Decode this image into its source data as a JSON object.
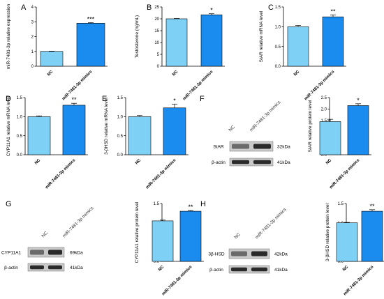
{
  "colors": {
    "nc_bar": "#7fd0f5",
    "mimics_bar": "#1a8cf0",
    "axis": "#000000",
    "blot_dark": "#2a2a2a",
    "blot_bg": "#c9c9c9"
  },
  "chart_data": [
    {
      "id": "A",
      "panel_label": "A",
      "type": "bar",
      "categories": [
        "NC",
        "miR-7481-3p mimics"
      ],
      "values": [
        1.0,
        2.9
      ],
      "errors": [
        0.02,
        0.04
      ],
      "significance": "***",
      "ylabel": "miR-7481-3p relative expression",
      "ylim": [
        0,
        4
      ],
      "yticks": [
        "0",
        "1",
        "2",
        "3",
        "4"
      ]
    },
    {
      "id": "B",
      "panel_label": "B",
      "type": "bar",
      "categories": [
        "NC",
        "miR-7481-3p mimics"
      ],
      "values": [
        20.0,
        21.7
      ],
      "errors": [
        0.15,
        0.45
      ],
      "significance": "*",
      "ylabel": "Testosterone (ng/mL)",
      "ylim": [
        0,
        25
      ],
      "yticks": [
        "0",
        "5",
        "10",
        "15",
        "20",
        "25"
      ]
    },
    {
      "id": "C",
      "panel_label": "C",
      "type": "bar",
      "categories": [
        "NC",
        "miR-7481-3p mimics"
      ],
      "values": [
        1.0,
        1.25
      ],
      "errors": [
        0.03,
        0.05
      ],
      "significance": "**",
      "ylabel": "StAR relative mRNA level",
      "ylim": [
        0,
        1.5
      ],
      "yticks": [
        "0.0",
        "0.5",
        "1.0",
        "1.5"
      ]
    },
    {
      "id": "D",
      "panel_label": "D",
      "type": "bar",
      "categories": [
        "NC",
        "miR-7481-3p mimics"
      ],
      "values": [
        1.0,
        1.3
      ],
      "errors": [
        0.02,
        0.05
      ],
      "significance": "**",
      "ylabel": "CYP11A1 relative mRNA level",
      "ylim": [
        0,
        1.5
      ],
      "yticks": [
        "0.0",
        "0.5",
        "1.0",
        "1.5"
      ]
    },
    {
      "id": "E",
      "panel_label": "E",
      "type": "bar",
      "categories": [
        "NC",
        "miR-7481-3p mimics"
      ],
      "values": [
        1.0,
        1.23
      ],
      "errors": [
        0.03,
        0.1
      ],
      "significance": "*",
      "ylabel": "3-βHSD relative mRNA level",
      "ylim": [
        0,
        1.5
      ],
      "yticks": [
        "0.0",
        "0.5",
        "1.0",
        "1.5"
      ]
    },
    {
      "id": "F",
      "panel_label": "",
      "type": "bar",
      "categories": [
        "NC",
        "miR-7481-3p mimics"
      ],
      "values": [
        1.45,
        2.15
      ],
      "errors": [
        0.1,
        0.08
      ],
      "significance": "*",
      "ylabel": "StAR relative protein level",
      "ylim": [
        0,
        2.5
      ],
      "yticks": [
        "0.0",
        "0.5",
        "1.0",
        "1.5",
        "2.0",
        "2.5"
      ]
    },
    {
      "id": "G",
      "panel_label": "",
      "type": "bar",
      "categories": [
        "NC",
        "miR-7481-3p mimics"
      ],
      "values": [
        1.05,
        1.3
      ],
      "errors": [
        0.02,
        0.02
      ],
      "significance": "**",
      "ylabel": "CYP11A1 relative protein level",
      "ylim": [
        0,
        1.5
      ],
      "yticks": [
        "0.0",
        "0.5",
        "1.0",
        "1.5"
      ]
    },
    {
      "id": "H",
      "panel_label": "",
      "type": "bar",
      "categories": [
        "NC",
        "miR-7481-3p mimics"
      ],
      "values": [
        1.0,
        1.3
      ],
      "errors": [
        0.01,
        0.04
      ],
      "significance": "**",
      "ylabel": "3-βHSD relative protein level",
      "ylim": [
        0,
        1.5
      ],
      "yticks": [
        "0.0",
        "0.5",
        "1.0",
        "1.5"
      ]
    }
  ],
  "blots": [
    {
      "id": "F",
      "panel_label": "F",
      "lanes": [
        "NC",
        "miR-7481-3p mimics"
      ],
      "rows": [
        {
          "protein": "StAR",
          "size": "32kDa"
        },
        {
          "protein": "β-actin",
          "size": "41kDa"
        }
      ]
    },
    {
      "id": "G",
      "panel_label": "G",
      "lanes": [
        "NC",
        "miR-7481-3p mimics"
      ],
      "rows": [
        {
          "protein": "CYP11A1",
          "size": "69kDa"
        },
        {
          "protein": "β-actin",
          "size": "41kDa"
        }
      ]
    },
    {
      "id": "H",
      "panel_label": "H",
      "lanes": [
        "NC",
        "miR-7481-3p mimics"
      ],
      "rows": [
        {
          "protein": "3β-HSD",
          "size": "42kDa"
        },
        {
          "protein": "β-actin",
          "size": "41kDa"
        }
      ]
    }
  ]
}
